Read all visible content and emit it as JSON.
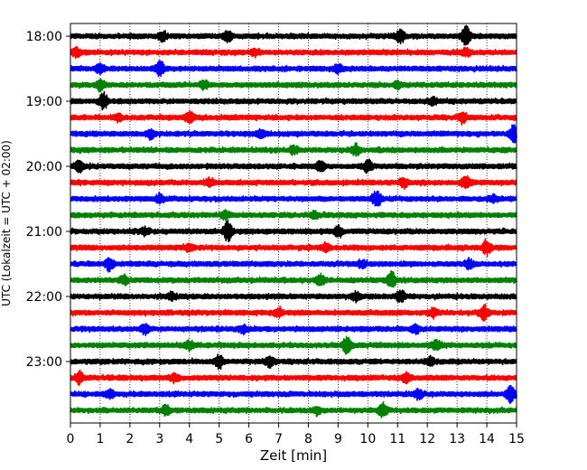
{
  "chart_data": {
    "type": "line",
    "title": "",
    "xlabel": "Zeit  [min]",
    "ylabel": "UTC (Lokalzeit = UTC + 02:00)",
    "xlim": [
      0,
      15
    ],
    "x_ticks": [
      "0",
      "1",
      "2",
      "3",
      "4",
      "5",
      "6",
      "7",
      "8",
      "9",
      "10",
      "11",
      "12",
      "13",
      "14",
      "15"
    ],
    "y_tick_labels": [
      "18:00",
      "19:00",
      "20:00",
      "21:00",
      "22:00",
      "23:00"
    ],
    "grid": "vertical dotted lines at each minute",
    "trace_colors": [
      "#000000",
      "#ff0000",
      "#0000ff",
      "#008000"
    ],
    "trace_interval_min": 15,
    "traces": [
      {
        "start": "18:00",
        "color": "#000000",
        "events": [
          [
            13.3,
            1.3
          ],
          [
            11.1,
            0.9
          ],
          [
            5.3,
            0.7
          ],
          [
            3.1,
            0.6
          ]
        ]
      },
      {
        "start": "18:15",
        "color": "#ff0000",
        "events": [
          [
            0.2,
            0.6
          ],
          [
            13.3,
            0.5
          ],
          [
            6.2,
            0.5
          ]
        ]
      },
      {
        "start": "18:30",
        "color": "#0000ff",
        "events": [
          [
            3.0,
            1.0
          ],
          [
            1.0,
            0.7
          ],
          [
            9.0,
            0.6
          ]
        ]
      },
      {
        "start": "18:45",
        "color": "#008000",
        "events": [
          [
            1.0,
            0.8
          ],
          [
            4.5,
            0.6
          ],
          [
            11.0,
            0.5
          ]
        ]
      },
      {
        "start": "19:00",
        "color": "#000000",
        "events": [
          [
            1.1,
            1.3
          ],
          [
            12.2,
            0.5
          ]
        ]
      },
      {
        "start": "19:15",
        "color": "#ff0000",
        "events": [
          [
            4.0,
            0.9
          ],
          [
            13.2,
            0.7
          ],
          [
            1.6,
            0.5
          ]
        ]
      },
      {
        "start": "19:30",
        "color": "#0000ff",
        "events": [
          [
            14.9,
            1.2
          ],
          [
            2.7,
            0.7
          ],
          [
            6.4,
            0.5
          ]
        ]
      },
      {
        "start": "19:45",
        "color": "#008000",
        "events": [
          [
            9.6,
            0.8
          ],
          [
            7.5,
            0.6
          ]
        ]
      },
      {
        "start": "20:00",
        "color": "#000000",
        "events": [
          [
            0.3,
            0.8
          ],
          [
            10.0,
            0.9
          ],
          [
            8.4,
            0.7
          ]
        ]
      },
      {
        "start": "20:15",
        "color": "#ff0000",
        "events": [
          [
            13.3,
            0.9
          ],
          [
            11.2,
            0.6
          ],
          [
            4.7,
            0.5
          ]
        ]
      },
      {
        "start": "20:30",
        "color": "#0000ff",
        "events": [
          [
            10.3,
            1.3
          ],
          [
            3.0,
            0.6
          ],
          [
            14.2,
            0.5
          ]
        ]
      },
      {
        "start": "20:45",
        "color": "#008000",
        "events": [
          [
            5.2,
            0.7
          ],
          [
            8.2,
            0.5
          ]
        ]
      },
      {
        "start": "21:00",
        "color": "#000000",
        "events": [
          [
            5.3,
            1.5
          ],
          [
            9.0,
            0.7
          ],
          [
            2.5,
            0.5
          ]
        ]
      },
      {
        "start": "21:15",
        "color": "#ff0000",
        "events": [
          [
            14.0,
            1.1
          ],
          [
            8.6,
            0.7
          ],
          [
            4.0,
            0.5
          ]
        ]
      },
      {
        "start": "21:30",
        "color": "#0000ff",
        "events": [
          [
            1.3,
            1.1
          ],
          [
            13.4,
            0.7
          ],
          [
            9.8,
            0.5
          ]
        ]
      },
      {
        "start": "21:45",
        "color": "#008000",
        "events": [
          [
            10.8,
            1.2
          ],
          [
            8.4,
            0.9
          ],
          [
            1.8,
            0.6
          ]
        ]
      },
      {
        "start": "22:00",
        "color": "#000000",
        "events": [
          [
            11.1,
            0.8
          ],
          [
            9.6,
            0.6
          ],
          [
            3.4,
            0.5
          ]
        ]
      },
      {
        "start": "22:15",
        "color": "#ff0000",
        "events": [
          [
            13.9,
            1.0
          ],
          [
            12.2,
            0.7
          ],
          [
            7.0,
            0.6
          ]
        ]
      },
      {
        "start": "22:30",
        "color": "#0000ff",
        "events": [
          [
            2.5,
            0.7
          ],
          [
            11.6,
            0.6
          ],
          [
            5.8,
            0.5
          ]
        ]
      },
      {
        "start": "22:45",
        "color": "#008000",
        "events": [
          [
            9.3,
            1.3
          ],
          [
            12.3,
            0.7
          ],
          [
            4.0,
            0.6
          ]
        ]
      },
      {
        "start": "23:00",
        "color": "#000000",
        "events": [
          [
            5.0,
            1.0
          ],
          [
            6.7,
            0.7
          ],
          [
            12.1,
            0.6
          ]
        ]
      },
      {
        "start": "23:15",
        "color": "#ff0000",
        "events": [
          [
            0.3,
            0.9
          ],
          [
            11.3,
            0.7
          ],
          [
            3.5,
            0.5
          ]
        ]
      },
      {
        "start": "23:30",
        "color": "#0000ff",
        "events": [
          [
            14.8,
            1.3
          ],
          [
            1.3,
            0.7
          ],
          [
            11.7,
            0.6
          ]
        ]
      },
      {
        "start": "23:45",
        "color": "#008000",
        "events": [
          [
            10.5,
            1.0
          ],
          [
            3.2,
            0.7
          ],
          [
            8.3,
            0.5
          ]
        ]
      }
    ]
  }
}
